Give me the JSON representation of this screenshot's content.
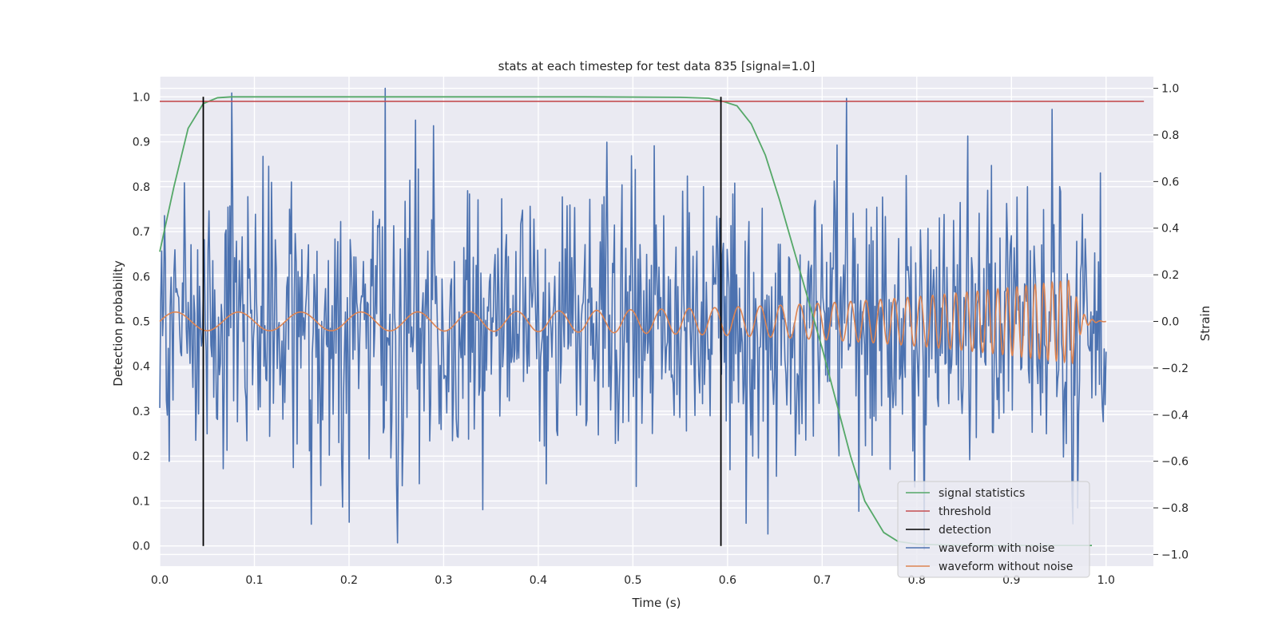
{
  "chart_data": {
    "type": "line",
    "title": "stats at each timestep for test data 835 [signal=1.0]",
    "xlabel": "Time (s)",
    "ylabel": "Detection probability",
    "y2label": "Strain",
    "xlim": [
      0.0,
      1.05
    ],
    "ylim": [
      -0.045,
      1.045
    ],
    "y2lim": [
      -1.05,
      1.05
    ],
    "xticks": [
      0.0,
      0.1,
      0.2,
      0.3,
      0.4,
      0.5,
      0.6,
      0.7,
      0.8,
      0.9,
      1.0
    ],
    "xtick_labels": [
      "0.0",
      "0.1",
      "0.2",
      "0.3",
      "0.4",
      "0.5",
      "0.6",
      "0.7",
      "0.8",
      "0.9",
      "1.0"
    ],
    "yticks": [
      0.0,
      0.1,
      0.2,
      0.3,
      0.4,
      0.5,
      0.6,
      0.7,
      0.8,
      0.9,
      1.0
    ],
    "ytick_labels": [
      "0.0",
      "0.1",
      "0.2",
      "0.3",
      "0.4",
      "0.5",
      "0.6",
      "0.7",
      "0.8",
      "0.9",
      "1.0"
    ],
    "y2ticks": [
      -1.0,
      -0.8,
      -0.6,
      -0.4,
      -0.2,
      0.0,
      0.2,
      0.4,
      0.6,
      0.8,
      1.0
    ],
    "y2tick_labels": [
      "−1.0",
      "−0.8",
      "−0.6",
      "−0.4",
      "−0.2",
      "0.0",
      "0.2",
      "0.4",
      "0.6",
      "0.8",
      "1.0"
    ],
    "grid": true,
    "legend_position": "lower-right",
    "colors": {
      "signal_statistics": "#55a868",
      "threshold": "#c44e52",
      "detection": "#000000",
      "waveform_with_noise": "#4c72b0",
      "waveform_without_noise": "#dd8452",
      "plot_background": "#eaeaf2",
      "grid": "#ffffff"
    },
    "series": [
      {
        "name": "signal statistics",
        "axis": "left",
        "x": [
          0.0,
          0.015,
          0.03,
          0.046,
          0.061,
          0.076,
          0.09,
          0.15,
          0.3,
          0.45,
          0.55,
          0.58,
          0.595,
          0.61,
          0.625,
          0.64,
          0.655,
          0.67,
          0.685,
          0.7,
          0.715,
          0.73,
          0.745,
          0.765,
          0.78,
          0.8,
          0.83,
          0.86,
          0.9,
          0.94,
          0.985
        ],
        "y": [
          0.655,
          0.8,
          0.93,
          0.985,
          0.998,
          1.0,
          1.0,
          1.0,
          1.0,
          1.0,
          0.999,
          0.997,
          0.99,
          0.98,
          0.94,
          0.87,
          0.77,
          0.66,
          0.55,
          0.44,
          0.32,
          0.2,
          0.1,
          0.03,
          0.01,
          0.004,
          0.002,
          0.001,
          0.001,
          0.001,
          0.001
        ]
      },
      {
        "name": "threshold",
        "axis": "left",
        "x": [
          0.0,
          1.04
        ],
        "y": [
          0.99,
          0.99
        ]
      },
      {
        "name": "detection",
        "axis": "left",
        "segments": [
          {
            "x": 0.046,
            "y": [
              0.0,
              1.0
            ]
          },
          {
            "x": 0.593,
            "y": [
              0.0,
              1.0
            ]
          }
        ]
      },
      {
        "name": "waveform with noise",
        "axis": "right",
        "description_points": 1000,
        "x_range": [
          0.0,
          1.0
        ],
        "amplitude_range": [
          -1.0,
          1.0
        ],
        "noise_std": 0.29,
        "spikes": [
          {
            "x": 0.01,
            "y": -0.6
          },
          {
            "x": 0.076,
            "y": 0.98
          },
          {
            "x": 0.238,
            "y": 1.0
          },
          {
            "x": 0.251,
            "y": -0.95
          },
          {
            "x": 0.16,
            "y": -0.87
          },
          {
            "x": 0.943,
            "y": 0.91
          },
          {
            "x": 0.97,
            "y": -0.8
          }
        ]
      },
      {
        "name": "waveform without noise",
        "axis": "right",
        "x_range": [
          0.0,
          1.0
        ],
        "chirp_start_freq": 15,
        "chirp_end_freq": 120,
        "amplitude_start": 0.04,
        "amplitude_end": 0.18,
        "merger_time": 0.965
      }
    ],
    "legend": [
      {
        "label": "signal statistics",
        "color": "#55a868"
      },
      {
        "label": "threshold",
        "color": "#c44e52"
      },
      {
        "label": "detection",
        "color": "#000000"
      },
      {
        "label": "waveform with noise",
        "color": "#4c72b0"
      },
      {
        "label": "waveform without noise",
        "color": "#dd8452"
      }
    ]
  }
}
